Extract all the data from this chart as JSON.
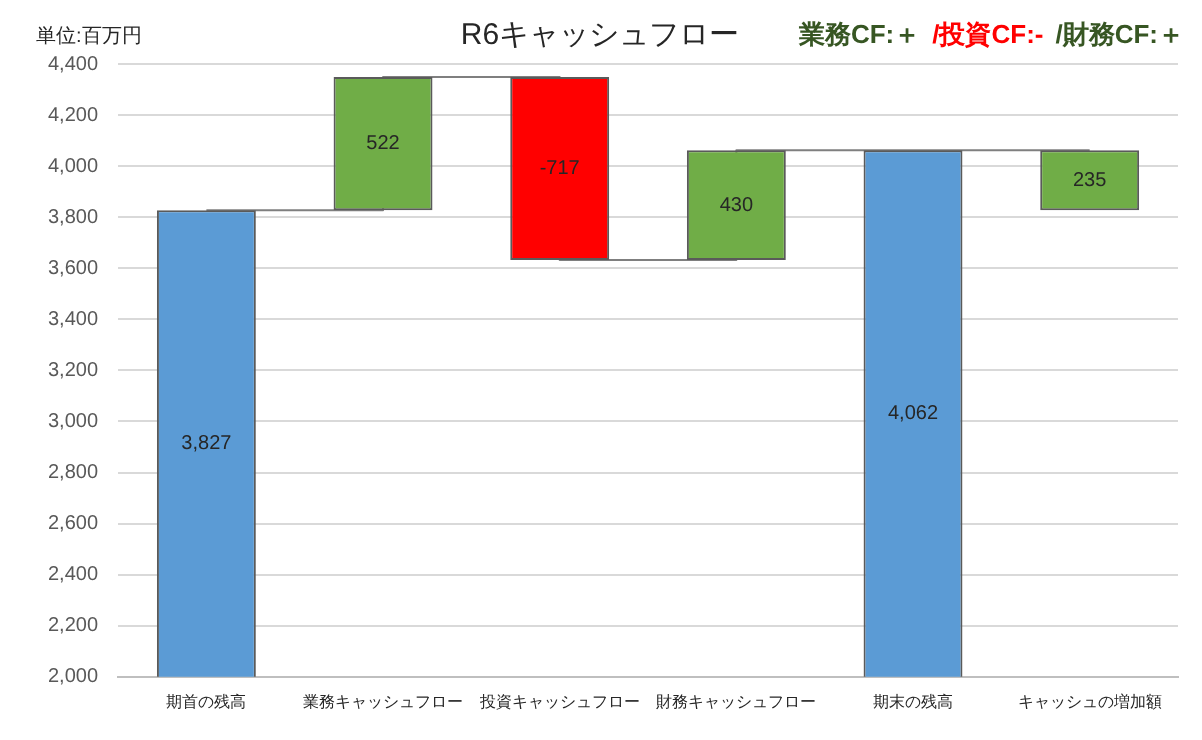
{
  "chart_data": {
    "type": "bar",
    "title": "R6キャッシュフロー",
    "ylabel": "単位:百万円",
    "annotations": [
      "業務CF:＋",
      "/投資CF:-",
      "/財務CF:＋"
    ],
    "categories": [
      "期首の残高",
      "業務キャッシュフロー",
      "投資キャッシュフロー",
      "財務キャッシュフロー",
      "期末の残高",
      "キャッシュの増加額"
    ],
    "values": [
      3827,
      522,
      -717,
      430,
      4062,
      235
    ],
    "base": [
      null,
      3827,
      4349,
      3632,
      null,
      3827
    ],
    "colors": [
      "#5b9bd5",
      "#70ad47",
      "#ff0000",
      "#70ad47",
      "#5b9bd5",
      "#70ad47"
    ],
    "value_labels": [
      "3,827",
      "522",
      "-717",
      "430",
      "4,062",
      "235"
    ],
    "series": [
      {
        "type": "step",
        "color": "#7f7f7f",
        "values": [
          3827,
          4349,
          3632,
          4062,
          4062,
          4062
        ],
        "marker": "none"
      }
    ],
    "ylim": [
      2000,
      4400
    ],
    "yticks": [
      {
        "value": 2000,
        "label": "2,000"
      },
      {
        "value": 2200,
        "label": "2,200"
      },
      {
        "value": 2400,
        "label": "2,400"
      },
      {
        "value": 2600,
        "label": "2,600"
      },
      {
        "value": 2800,
        "label": "2,800"
      },
      {
        "value": 3000,
        "label": "3,000"
      },
      {
        "value": 3200,
        "label": "3,200"
      },
      {
        "value": 3400,
        "label": "3,400"
      },
      {
        "value": 3600,
        "label": "3,600"
      },
      {
        "value": 3800,
        "label": "3,800"
      },
      {
        "value": 4000,
        "label": "4,000"
      },
      {
        "value": 4200,
        "label": "4,200"
      },
      {
        "value": 4400,
        "label": "4,400"
      }
    ],
    "grid": "y",
    "legend": false
  }
}
